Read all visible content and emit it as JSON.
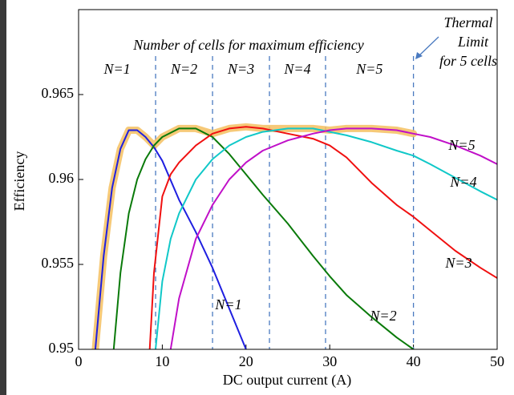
{
  "chart_data": {
    "type": "line",
    "x_label": "DC output current (A)",
    "y_label": "Efficiency",
    "xlim": [
      0,
      50
    ],
    "ylim": [
      0.95,
      0.97
    ],
    "xticks": [
      0,
      10,
      20,
      30,
      40,
      50
    ],
    "yticks": [
      0.95,
      0.955,
      0.96,
      0.965
    ],
    "region_title": "Number of cells for maximum efficiency",
    "regions": [
      "N=1",
      "N=2",
      "N=3",
      "N=4",
      "N=5"
    ],
    "boundaries": [
      9.2,
      16,
      22.8,
      29.5,
      40
    ],
    "thermal_note": [
      "Thermal",
      "Limit",
      "for 5 cells"
    ],
    "series": [
      {
        "name": "N=1",
        "color": "#1f1fe0",
        "x": [
          2,
          3,
          4,
          5,
          6,
          7,
          8,
          9,
          10,
          12,
          14,
          16,
          18,
          20
        ],
        "values": [
          0.95,
          0.9555,
          0.9595,
          0.9618,
          0.9629,
          0.9629,
          0.9625,
          0.9619,
          0.9611,
          0.9588,
          0.9569,
          0.9548,
          0.9524,
          0.95
        ]
      },
      {
        "name": "N=2",
        "color": "#0a7a0a",
        "x": [
          4.2,
          5,
          6,
          7,
          8,
          9,
          10,
          12,
          14,
          16,
          18,
          20,
          22,
          25,
          28,
          30,
          32,
          35,
          38,
          40
        ],
        "values": [
          0.95,
          0.9545,
          0.958,
          0.96,
          0.9612,
          0.962,
          0.9625,
          0.963,
          0.963,
          0.9625,
          0.9615,
          0.9603,
          0.9591,
          0.9574,
          0.9555,
          0.9543,
          0.9532,
          0.9519,
          0.9507,
          0.95
        ]
      },
      {
        "name": "N=3",
        "color": "#f01010",
        "x": [
          8.5,
          9,
          10,
          11,
          12,
          14,
          16,
          18,
          20,
          22,
          25,
          28,
          30,
          32,
          35,
          38,
          40,
          42,
          45,
          48,
          50
        ],
        "values": [
          0.95,
          0.9545,
          0.959,
          0.9603,
          0.961,
          0.962,
          0.9627,
          0.963,
          0.9631,
          0.963,
          0.9627,
          0.9624,
          0.962,
          0.9613,
          0.9598,
          0.9585,
          0.9578,
          0.957,
          0.9558,
          0.9548,
          0.9542
        ]
      },
      {
        "name": "N=4",
        "color": "#10c8c8",
        "x": [
          9.2,
          10,
          11,
          12,
          14,
          16,
          18,
          20,
          22,
          25,
          28,
          30,
          32,
          35,
          38,
          40,
          42,
          45,
          48,
          50
        ],
        "values": [
          0.95,
          0.954,
          0.9565,
          0.958,
          0.96,
          0.9612,
          0.962,
          0.9625,
          0.9628,
          0.963,
          0.963,
          0.9628,
          0.9626,
          0.9622,
          0.9617,
          0.9614,
          0.9609,
          0.9601,
          0.9593,
          0.9588
        ]
      },
      {
        "name": "N=5",
        "color": "#c010c8",
        "x": [
          11,
          12,
          14,
          16,
          18,
          20,
          22,
          25,
          28,
          30,
          32,
          35,
          38,
          40,
          42,
          45,
          48,
          50
        ],
        "values": [
          0.95,
          0.953,
          0.9565,
          0.9585,
          0.96,
          0.961,
          0.9617,
          0.9623,
          0.9627,
          0.9629,
          0.963,
          0.963,
          0.9629,
          0.9627,
          0.9625,
          0.962,
          0.9614,
          0.9609
        ]
      },
      {
        "color": "#f5c060",
        "x": [
          2,
          3,
          4,
          5,
          6,
          7,
          8,
          9,
          10,
          12,
          14,
          16,
          18,
          20,
          22,
          25,
          28,
          30,
          32,
          35,
          38,
          40
        ],
        "values": [
          0.95,
          0.9555,
          0.9595,
          0.9618,
          0.9629,
          0.9629,
          0.9625,
          0.962,
          0.9625,
          0.963,
          0.963,
          0.9627,
          0.963,
          0.9631,
          0.963,
          0.963,
          0.963,
          0.9629,
          0.963,
          0.963,
          0.9629,
          0.9627
        ]
      }
    ]
  }
}
